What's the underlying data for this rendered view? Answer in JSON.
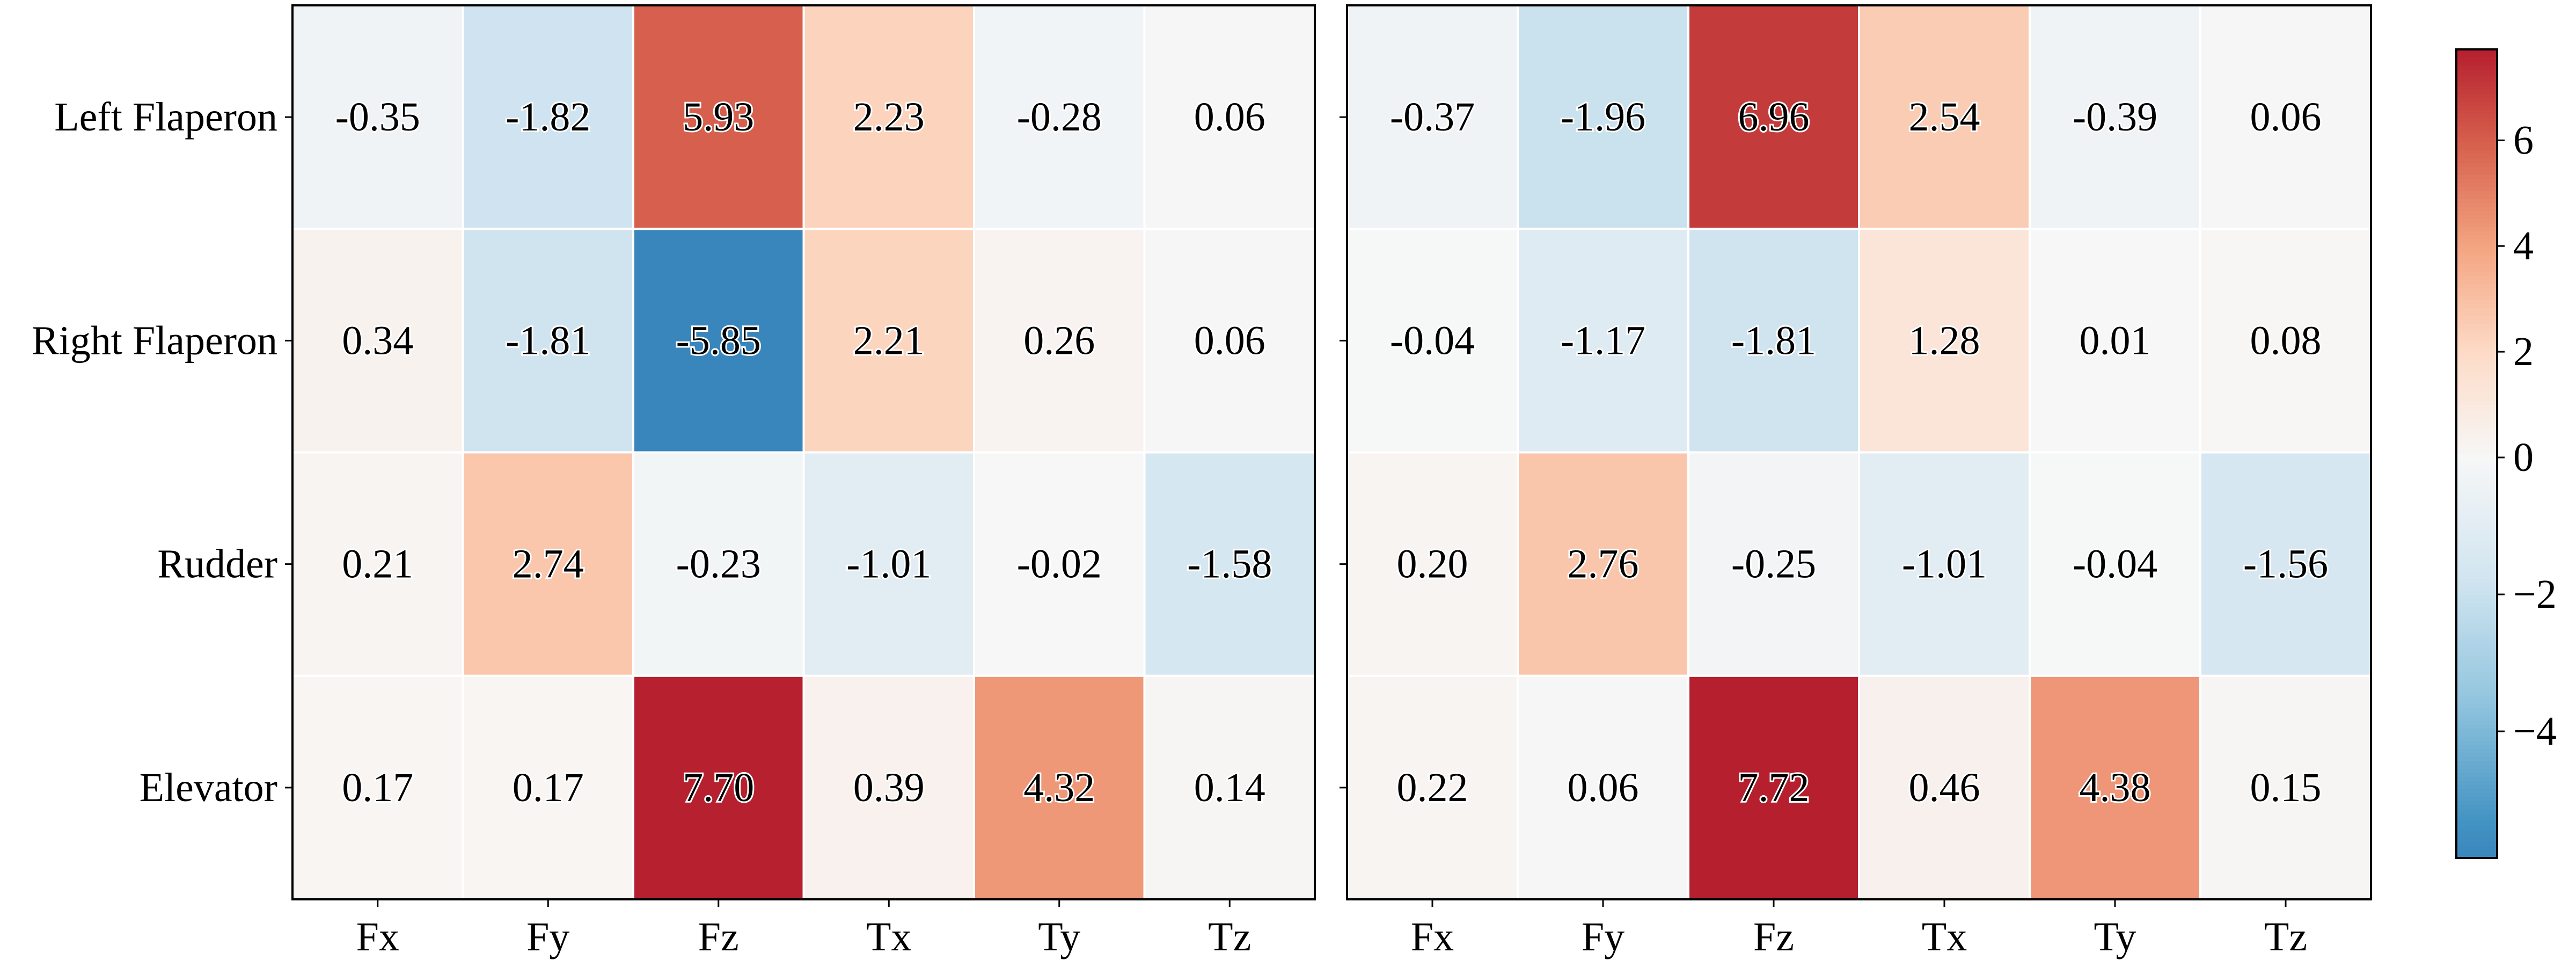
{
  "chart_data": [
    {
      "type": "heatmap",
      "rows": [
        "Left Flaperon",
        "Right Flaperon",
        "Rudder",
        "Elevator"
      ],
      "columns": [
        "Fx",
        "Fy",
        "Fz",
        "Tx",
        "Ty",
        "Tz"
      ],
      "values": [
        [
          -0.35,
          -1.82,
          5.93,
          2.23,
          -0.28,
          0.06
        ],
        [
          0.34,
          -1.81,
          -5.85,
          2.21,
          0.26,
          0.06
        ],
        [
          0.21,
          2.74,
          -0.23,
          -1.01,
          -0.02,
          -1.58
        ],
        [
          0.17,
          0.17,
          7.7,
          0.39,
          4.32,
          0.14
        ]
      ],
      "labels": [
        [
          "-0.35",
          "-1.82",
          "5.93",
          "2.23",
          "-0.28",
          "0.06"
        ],
        [
          "0.34",
          "-1.81",
          "-5.85",
          "2.21",
          "0.26",
          "0.06"
        ],
        [
          "0.21",
          "2.74",
          "-0.23",
          "-1.01",
          "-0.02",
          "-1.58"
        ],
        [
          "0.17",
          "0.17",
          "7.70",
          "0.39",
          "4.32",
          "0.14"
        ]
      ]
    },
    {
      "type": "heatmap",
      "rows": [
        "Left Flaperon",
        "Right Flaperon",
        "Rudder",
        "Elevator"
      ],
      "columns": [
        "Fx",
        "Fy",
        "Fz",
        "Tx",
        "Ty",
        "Tz"
      ],
      "values": [
        [
          -0.37,
          -1.96,
          6.96,
          2.54,
          -0.39,
          0.06
        ],
        [
          -0.04,
          -1.17,
          -1.81,
          1.28,
          0.01,
          0.08
        ],
        [
          0.2,
          2.76,
          -0.25,
          -1.01,
          -0.04,
          -1.56
        ],
        [
          0.22,
          0.06,
          7.72,
          0.46,
          4.38,
          0.15
        ]
      ],
      "labels": [
        [
          "-0.37",
          "-1.96",
          "6.96",
          "2.54",
          "-0.39",
          "0.06"
        ],
        [
          "-0.04",
          "-1.17",
          "-1.81",
          "1.28",
          "0.01",
          "0.08"
        ],
        [
          "0.20",
          "2.76",
          "-0.25",
          "-1.01",
          "-0.04",
          "-1.56"
        ],
        [
          "0.22",
          "0.06",
          "7.72",
          "0.46",
          "4.38",
          "0.15"
        ]
      ]
    }
  ],
  "colorbar": {
    "colormap": "RdBu_r",
    "center": 0,
    "range": [
      -5.85,
      7.72
    ],
    "ticks": [
      6,
      4,
      2,
      0,
      -2,
      -4
    ],
    "tick_labels": [
      "6",
      "4",
      "2",
      "0",
      "−2",
      "−4"
    ]
  },
  "colors": {
    "low": "#2166ac",
    "mid": "#f7f7f7",
    "high": "#b2182b"
  }
}
